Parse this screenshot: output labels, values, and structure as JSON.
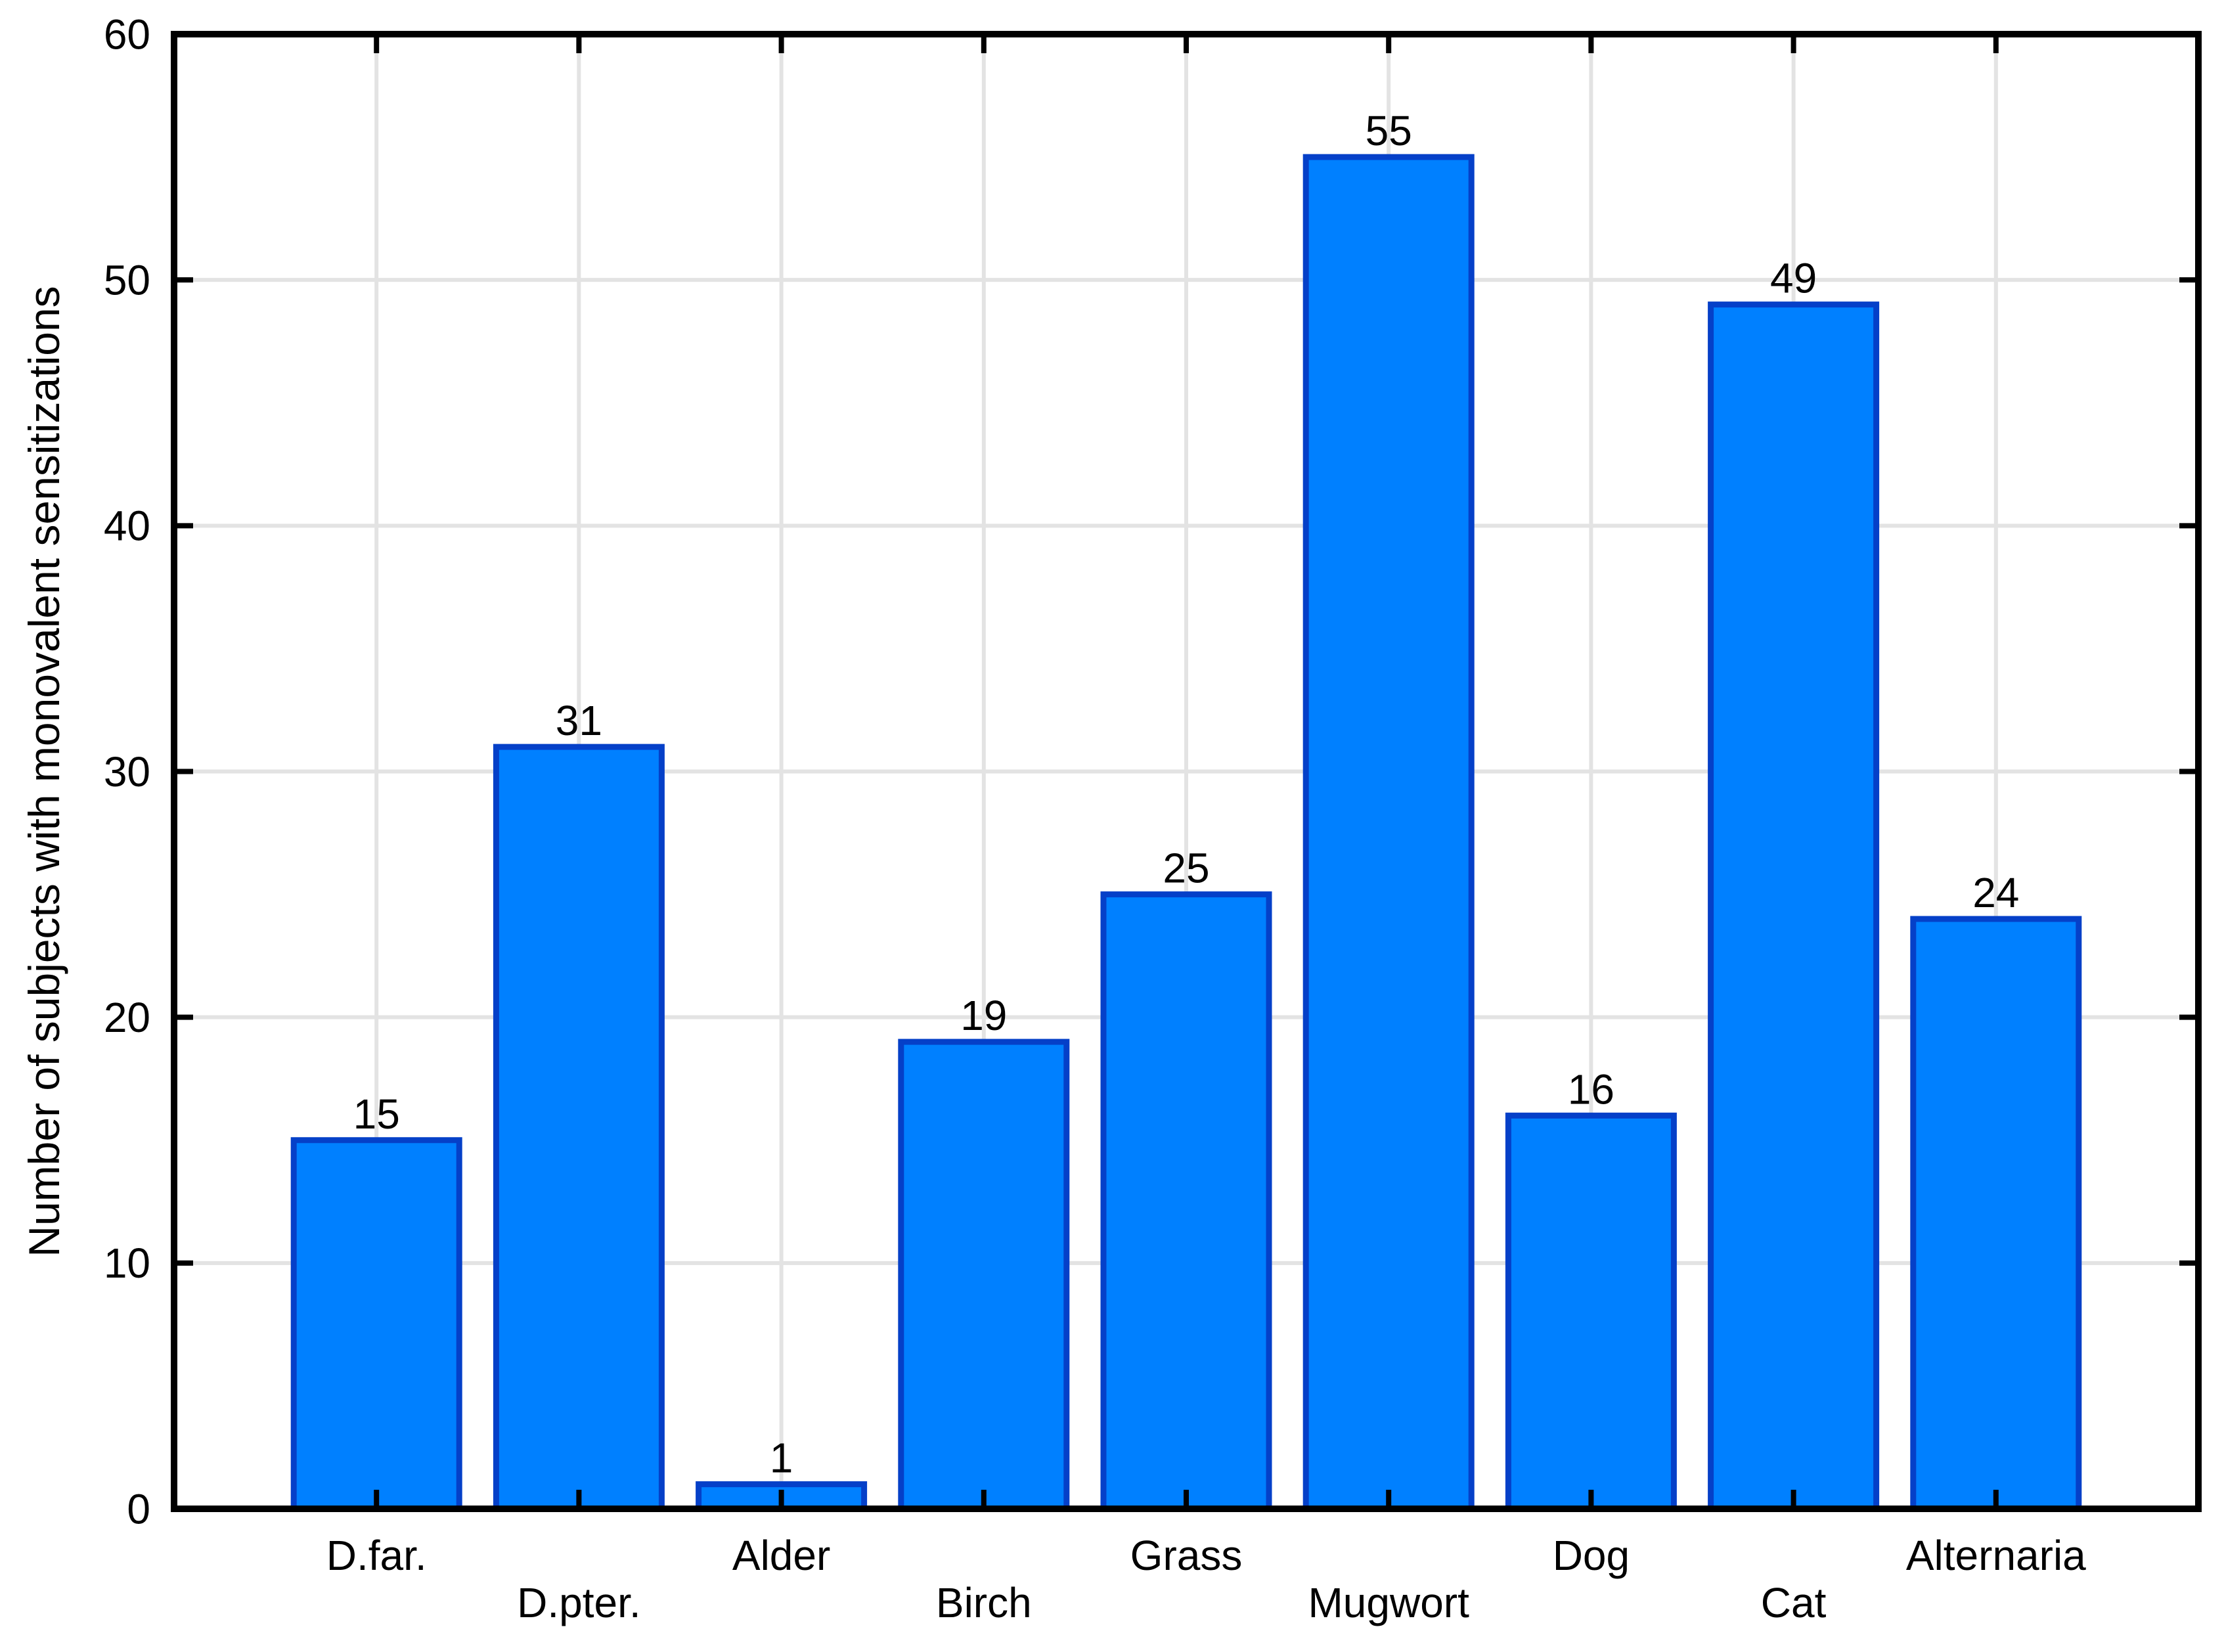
{
  "chart_data": {
    "type": "bar",
    "title": "",
    "xlabel": "",
    "ylabel": "Number of subjects with monovalent sensitizations",
    "categories": [
      "D.far.",
      "D.pter.",
      "Alder",
      "Birch",
      "Grass",
      "Mugwort",
      "Dog",
      "Cat",
      "Alternaria"
    ],
    "values": [
      15,
      31,
      1,
      19,
      25,
      55,
      16,
      49,
      24
    ],
    "bar_value_labels": [
      "15",
      "31",
      "1",
      "19",
      "25",
      "55",
      "16",
      "49",
      "24"
    ],
    "x_label_rows": [
      1,
      2,
      1,
      2,
      1,
      2,
      1,
      2,
      1
    ],
    "ylim": [
      0,
      60
    ],
    "ytick_step": 10,
    "ytick_labels": [
      "0",
      "10",
      "20",
      "30",
      "40",
      "50",
      "60"
    ],
    "grid": true,
    "legend_position": "none",
    "colors": {
      "bar_fill": "#0080FF",
      "bar_stroke": "#0540C8",
      "gridline": "#E3E3E3",
      "axis": "#000000",
      "text": "#000000",
      "background": "#FFFFFF"
    }
  }
}
